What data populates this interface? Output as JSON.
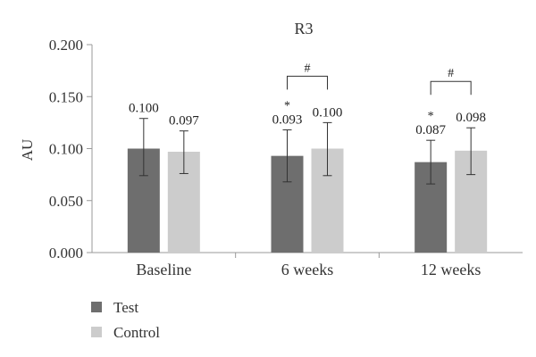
{
  "chart_data": {
    "type": "bar",
    "title": "R3",
    "ylabel": "AU",
    "xlabel": "",
    "ylim": [
      0,
      0.2
    ],
    "yticks": [
      "0.000",
      "0.050",
      "0.100",
      "0.150",
      "0.200"
    ],
    "ytick_values": [
      0,
      0.05,
      0.1,
      0.15,
      0.2
    ],
    "categories": [
      "Baseline",
      "6 weeks",
      "12 weeks"
    ],
    "series": [
      {
        "name": "Test",
        "color": "#6e6e6e",
        "values": [
          0.1,
          0.093,
          0.087
        ],
        "labels": [
          "0.100",
          "0.093",
          "0.087"
        ],
        "err_low": [
          0.074,
          0.068,
          0.066
        ],
        "err_high": [
          0.129,
          0.118,
          0.108
        ],
        "markers": [
          "",
          "*",
          "*"
        ]
      },
      {
        "name": "Control",
        "color": "#cccccc",
        "values": [
          0.097,
          0.1,
          0.098
        ],
        "labels": [
          "0.097",
          "0.100",
          "0.098"
        ],
        "err_low": [
          0.076,
          0.074,
          0.075
        ],
        "err_high": [
          0.117,
          0.125,
          0.12
        ],
        "markers": [
          "",
          "",
          ""
        ]
      }
    ],
    "brackets": [
      {
        "category_index": 1,
        "symbol": "#"
      },
      {
        "category_index": 2,
        "symbol": "#"
      }
    ],
    "grid": false,
    "legend": "bottom-left"
  }
}
